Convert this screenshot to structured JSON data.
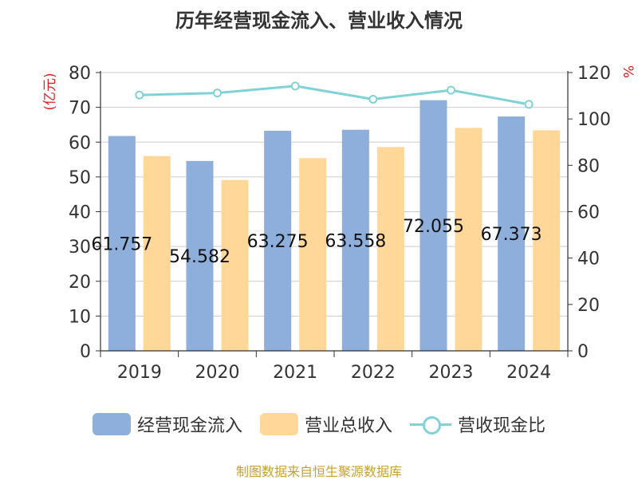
{
  "page": {
    "title": "历年经营现金流入、营业收入情况",
    "source": "制图数据来自恒生聚源数据库"
  },
  "chart_data": {
    "type": "bar",
    "categories": [
      "2019",
      "2020",
      "2021",
      "2022",
      "2023",
      "2024"
    ],
    "series": [
      {
        "name": "经营现金流入",
        "type": "bar",
        "axis": "left",
        "color": "#8eaedb",
        "values": [
          61.757,
          54.582,
          63.275,
          63.558,
          72.055,
          67.373
        ],
        "data_labels": [
          "61.757",
          "54.582",
          "63.275",
          "63.558",
          "72.055",
          "67.373"
        ]
      },
      {
        "name": "营业总收入",
        "type": "bar",
        "axis": "left",
        "color": "#ffd899",
        "values": [
          56.0,
          49.1,
          55.4,
          58.6,
          64.1,
          63.4
        ]
      },
      {
        "name": "营收现金比",
        "type": "line",
        "axis": "right",
        "color": "#7fd3d6",
        "values": [
          110.3,
          111.2,
          114.2,
          108.5,
          112.4,
          106.3
        ]
      }
    ],
    "ylabel_left": "(亿元)",
    "ylabel_right": "%",
    "ylim_left": [
      0,
      80
    ],
    "ylim_right": [
      0,
      120
    ],
    "yticks_left": [
      "0",
      "10",
      "20",
      "30",
      "40",
      "50",
      "60",
      "70",
      "80"
    ],
    "yticks_right": [
      "0",
      "20",
      "40",
      "60",
      "80",
      "100",
      "120"
    ],
    "grid": true,
    "legend_position": "bottom"
  }
}
